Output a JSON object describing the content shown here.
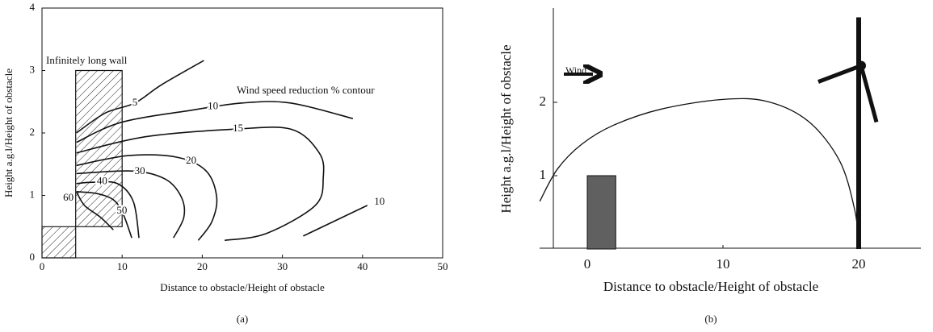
{
  "chart_data": [
    {
      "type": "contour",
      "xlabel": "Distance to obstacle/Height of obstacle",
      "ylabel": "Height a.g.l/Height of obstacle",
      "caption": "(a)",
      "annotation": "Wind speed reduction % contour",
      "xlim": [
        0,
        50
      ],
      "xticks": [
        0,
        10,
        20,
        30,
        40,
        50
      ],
      "ylim": [
        0,
        4
      ],
      "yticks": [
        0,
        1,
        2,
        3,
        4
      ],
      "wall": {
        "label": "Infinitely long wall",
        "x": [
          0,
          4.2,
          4.2,
          10,
          10,
          0
        ],
        "y": [
          0,
          0,
          3.0,
          3.0,
          0.5,
          0.5
        ]
      },
      "contours": [
        {
          "level": 5,
          "x": [
            4.3,
            7.9,
            11.6,
            14.9,
            20.2
          ],
          "y": [
            2.0,
            2.32,
            2.48,
            2.77,
            3.16
          ]
        },
        {
          "level": 10,
          "x": [
            4.3,
            9.9,
            18.95,
            24.99,
            31.0,
            38.8
          ],
          "y": [
            1.85,
            2.17,
            2.37,
            2.48,
            2.48,
            2.23
          ]
        },
        {
          "level": 15,
          "x": [
            4.3,
            12.9,
            24.0,
            31.1,
            34.6,
            35.1,
            34.1,
            28.0,
            22.8
          ],
          "y": [
            1.68,
            1.94,
            2.06,
            2.06,
            1.68,
            1.29,
            0.84,
            0.39,
            0.28
          ]
        },
        {
          "level": 20,
          "x": [
            4.3,
            10.9,
            16.9,
            20.5,
            21.8,
            21.2,
            19.5
          ],
          "y": [
            1.48,
            1.64,
            1.61,
            1.39,
            0.97,
            0.58,
            0.28
          ]
        },
        {
          "level": 30,
          "x": [
            4.3,
            11.4,
            15.4,
            17.4,
            17.7,
            16.4
          ],
          "y": [
            1.35,
            1.39,
            1.26,
            0.97,
            0.65,
            0.32
          ]
        },
        {
          "level": 40,
          "x": [
            4.3,
            6.35,
            9.4,
            11.4,
            12.1
          ],
          "y": [
            1.19,
            1.21,
            1.19,
            0.9,
            0.32
          ]
        },
        {
          "level": 50,
          "x": [
            4.3,
            6.85,
            8.9,
            10.1,
            11.2
          ],
          "y": [
            1.06,
            1.03,
            0.93,
            0.71,
            0.32
          ]
        },
        {
          "level": 60,
          "x": [
            4.3,
            5.3,
            7.3,
            8.9
          ],
          "y": [
            1.06,
            0.84,
            0.65,
            0.45
          ]
        },
        {
          "level": 10,
          "x": [
            32.6,
            40.6
          ],
          "y": [
            0.35,
            0.84
          ]
        }
      ]
    },
    {
      "type": "line",
      "xlabel": "Distance to obstacle/Height of obstacle",
      "ylabel": "Height a.g.l/Height of obstacle",
      "caption": "(b)",
      "wind_label": "Wind",
      "xlim": [
        -2.5,
        24.5
      ],
      "xticks": [
        0,
        10,
        20
      ],
      "ylim": [
        0,
        3.3
      ],
      "yticks": [
        1,
        2
      ],
      "x": [
        -3.5,
        -2.2,
        -0.4,
        1.96,
        5.5,
        10.0,
        13.3,
        16.3,
        18.6,
        19.7,
        20.0
      ],
      "values": [
        0.65,
        1.09,
        1.43,
        1.69,
        1.91,
        2.04,
        2.01,
        1.74,
        1.2,
        0.54,
        0.1
      ],
      "obstacle": {
        "x": [
          0,
          2.1
        ],
        "height": 1.0,
        "color": "#606060"
      },
      "turbine": {
        "x": 20,
        "hub_height": 2.5
      }
    }
  ]
}
